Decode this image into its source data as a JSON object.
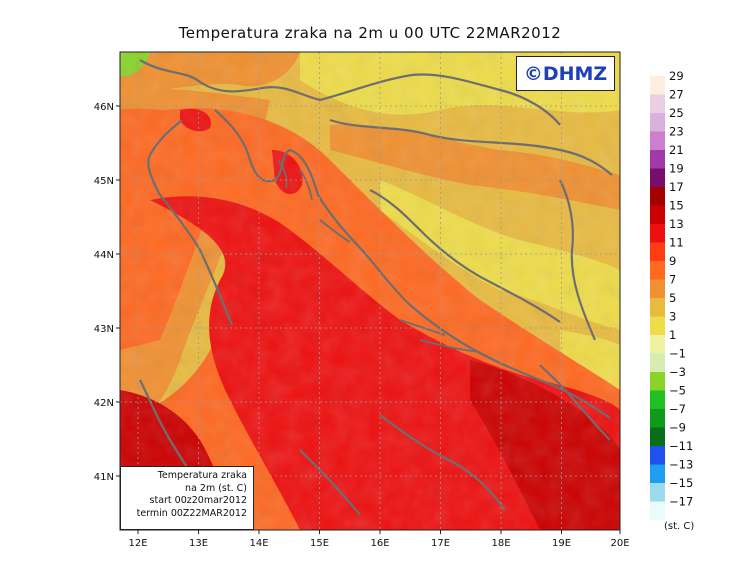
{
  "title": "Temperatura zraka na 2m u 00 UTC 22MAR2012",
  "logo": "©DHMZ",
  "info_box": {
    "line1": "Temperatura zraka",
    "line2": "na 2m (st. C)",
    "line3": "start 00z20mar2012",
    "line4": "termin 00Z22MAR2012"
  },
  "axes": {
    "lon_ticks": [
      "12E",
      "13E",
      "14E",
      "15E",
      "16E",
      "17E",
      "18E",
      "19E",
      "20E"
    ],
    "lat_ticks": [
      "46N",
      "45N",
      "44N",
      "43N",
      "42N",
      "41N"
    ]
  },
  "legend": {
    "unit": "(st. C)",
    "labels": [
      "29",
      "27",
      "25",
      "23",
      "21",
      "19",
      "17",
      "15",
      "13",
      "11",
      "9",
      "7",
      "5",
      "3",
      "1",
      "−1",
      "−3",
      "−5",
      "−7",
      "−9",
      "−11",
      "−13",
      "−15",
      "−17"
    ],
    "colors": [
      "#fdeee2",
      "#e8cfe4",
      "#dcb0dc",
      "#cc7fcc",
      "#a03aa8",
      "#7a0c6a",
      "#a40000",
      "#cc0000",
      "#ee1010",
      "#ff3c14",
      "#ff6820",
      "#f09030",
      "#e8ba40",
      "#eedc48",
      "#eef2a0",
      "#d6ecb0",
      "#8ad428",
      "#20c020",
      "#109a1c",
      "#0a6e18",
      "#2050f0",
      "#1e9ef0",
      "#9adcec",
      "#e8fcfc"
    ]
  },
  "map_colors": {
    "sea_dark": "#cc0000",
    "sea_red": "#ee1010",
    "coast_orange": "#ff6820",
    "inland_orange": "#f09030",
    "inland_yellow": "#e8ba40",
    "inland_pale": "#eedc48",
    "border": "#6e6e6e"
  }
}
